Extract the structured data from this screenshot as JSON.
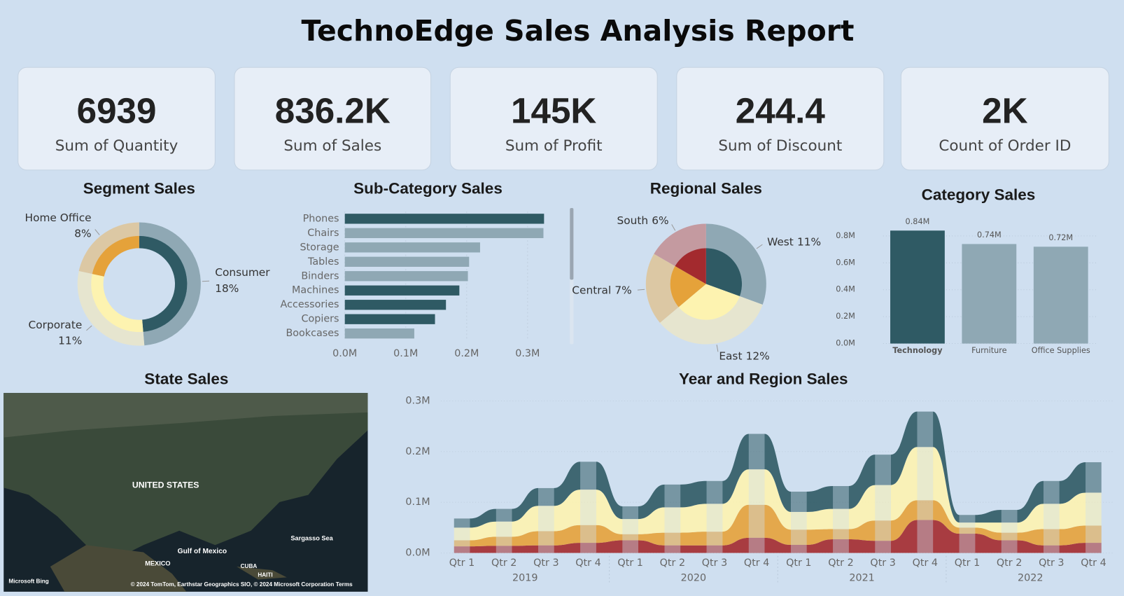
{
  "title": "TechnoEdge Sales Analysis Report",
  "kpis": [
    {
      "value": "6939",
      "label": "Sum of Quantity"
    },
    {
      "value": "836.2K",
      "label": "Sum of Sales"
    },
    {
      "value": "145K",
      "label": "Sum of Profit"
    },
    {
      "value": "244.4",
      "label": "Sum of Discount"
    },
    {
      "value": "2K",
      "label": "Count of Order ID"
    }
  ],
  "map": {
    "title": "State Sales",
    "labels": [
      "UNITED STATES",
      "Gulf of Mexico",
      "MEXICO",
      "Sargasso Sea",
      "CUBA",
      "HAITI",
      "Microsoft Bing",
      "© 2024 TomTom, Earthstar Geographics SIO, © 2024 Microsoft Corporation",
      "Terms"
    ]
  },
  "chart_data": [
    {
      "type": "donut",
      "title": "Segment Sales",
      "categories": [
        "Consumer",
        "Corporate",
        "Home Office"
      ],
      "values": [
        18,
        11,
        8
      ],
      "value_labels": [
        "18%",
        "11%",
        "8%"
      ],
      "colors": [
        "#8fa8b4",
        "#e6e5cf",
        "#dcc8a4"
      ],
      "inner_colors": [
        "#2f5a64",
        "#fdf3b0",
        "#e5a23a"
      ]
    },
    {
      "type": "hbar",
      "title": "Sub-Category Sales",
      "categories": [
        "Phones",
        "Chairs",
        "Storage",
        "Tables",
        "Binders",
        "Machines",
        "Accessories",
        "Copiers",
        "Bookcases"
      ],
      "values": [
        0.327,
        0.326,
        0.222,
        0.204,
        0.202,
        0.188,
        0.166,
        0.148,
        0.114
      ],
      "colors": [
        "#2f5a64",
        "#8fa8b4",
        "#8fa8b4",
        "#8fa8b4",
        "#8fa8b4",
        "#2f5a64",
        "#2f5a64",
        "#2f5a64",
        "#8fa8b4"
      ],
      "xlim": [
        0,
        0.34
      ],
      "xticks": [
        {
          "value": 0,
          "label": "0.0M"
        },
        {
          "value": 0.1,
          "label": "0.1M"
        },
        {
          "value": 0.2,
          "label": "0.2M"
        },
        {
          "value": 0.3,
          "label": "0.3M"
        }
      ]
    },
    {
      "type": "pie_ring",
      "title": "Regional Sales",
      "categories": [
        "West",
        "East",
        "Central",
        "South"
      ],
      "values": [
        11,
        12,
        7,
        6
      ],
      "value_labels": [
        "11%",
        "12%",
        "7%",
        "6%"
      ],
      "colors": [
        "#8fa8b4",
        "#e6e5cf",
        "#dcc8a4",
        "#c49aa0"
      ],
      "inner_colors": [
        "#2f5a64",
        "#fdf3b0",
        "#e5a23a",
        "#a32a2e"
      ]
    },
    {
      "type": "bar",
      "title": "Category Sales",
      "categories": [
        "Technology",
        "Furniture",
        "Office Supplies"
      ],
      "values": [
        0.84,
        0.74,
        0.72
      ],
      "value_labels": [
        "0.84M",
        "0.74M",
        "0.72M"
      ],
      "colors": [
        "#2f5a64",
        "#8fa8b4",
        "#8fa8b4"
      ],
      "ylim": [
        0,
        0.85
      ],
      "yticks": [
        {
          "value": 0,
          "label": "0.0M"
        },
        {
          "value": 0.2,
          "label": "0.2M"
        },
        {
          "value": 0.4,
          "label": "0.4M"
        },
        {
          "value": 0.6,
          "label": "0.6M"
        },
        {
          "value": 0.8,
          "label": "0.8M"
        }
      ],
      "grid": true
    },
    {
      "type": "ribbon",
      "title": "Year and Region Sales",
      "categories": [
        "Qtr 1",
        "Qtr 2",
        "Qtr 3",
        "Qtr 4",
        "Qtr 1",
        "Qtr 2",
        "Qtr 3",
        "Qtr 4",
        "Qtr 1",
        "Qtr 2",
        "Qtr 3",
        "Qtr 4",
        "Qtr 1",
        "Qtr 2",
        "Qtr 3",
        "Qtr 4"
      ],
      "groups": [
        "2019",
        "2020",
        "2021",
        "2022"
      ],
      "series": [
        {
          "color": "#a32a2e",
          "values": [
            0.013,
            0.014,
            0.015,
            0.02,
            0.025,
            0.015,
            0.015,
            0.03,
            0.016,
            0.027,
            0.024,
            0.065,
            0.038,
            0.025,
            0.015,
            0.02
          ]
        },
        {
          "color": "#e5a23a",
          "values": [
            0.012,
            0.018,
            0.028,
            0.035,
            0.012,
            0.025,
            0.027,
            0.065,
            0.03,
            0.02,
            0.04,
            0.039,
            0.012,
            0.015,
            0.032,
            0.034
          ]
        },
        {
          "color": "#fdf3b0",
          "values": [
            0.025,
            0.03,
            0.05,
            0.07,
            0.03,
            0.05,
            0.055,
            0.07,
            0.035,
            0.04,
            0.07,
            0.105,
            0.01,
            0.02,
            0.05,
            0.065
          ]
        },
        {
          "color": "#2f5a64",
          "values": [
            0.018,
            0.025,
            0.035,
            0.055,
            0.025,
            0.045,
            0.045,
            0.07,
            0.04,
            0.045,
            0.06,
            0.07,
            0.015,
            0.025,
            0.045,
            0.06
          ]
        }
      ],
      "ylim": [
        0,
        0.3
      ],
      "yticks": [
        {
          "value": 0,
          "label": "0.0M"
        },
        {
          "value": 0.1,
          "label": "0.1M"
        },
        {
          "value": 0.2,
          "label": "0.2M"
        },
        {
          "value": 0.3,
          "label": "0.3M"
        }
      ]
    }
  ]
}
